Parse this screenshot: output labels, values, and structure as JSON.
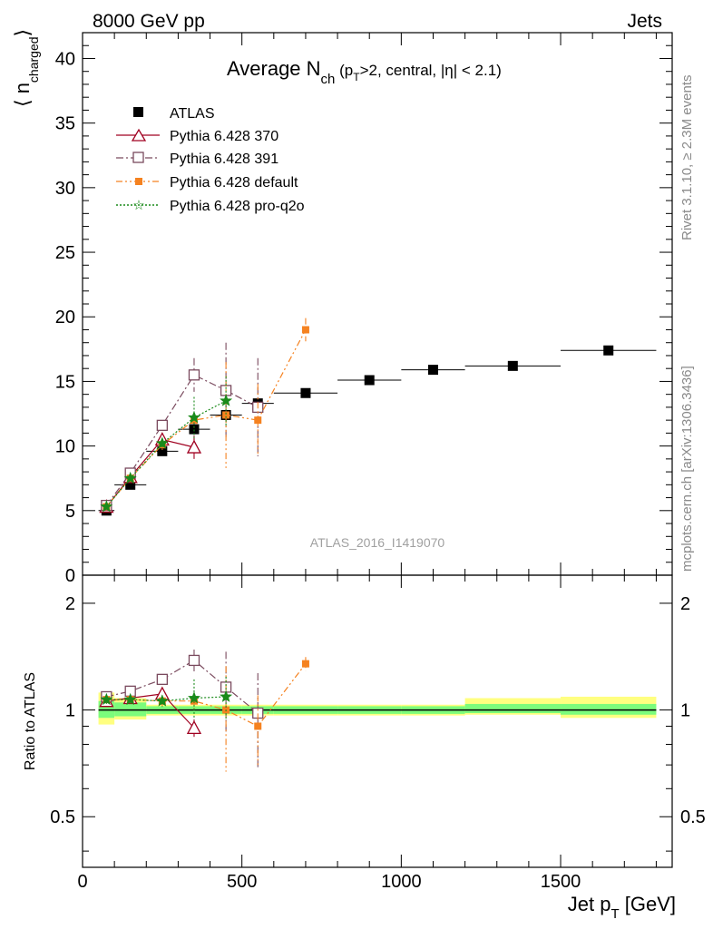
{
  "header": {
    "left": "8000 GeV pp",
    "right": "Jets"
  },
  "side_labels": {
    "rivet": "Rivet 3.1.10, ≥ 2.3M events",
    "mcplots": "mcplots.cern.ch [arXiv:1306.3436]"
  },
  "watermark": "ATLAS_2016_I1419070",
  "colors": {
    "atlas": "#000000",
    "py370": "#a00020",
    "py391": "#7a4a5e",
    "pydefault": "#f58220",
    "pyproq2o": "#1a8a1a",
    "band_inner": "#7cfc7c",
    "band_outer": "#ffff80"
  },
  "chart_data": [
    {
      "type": "scatter",
      "title": "Average N_ch (p_T>2, central, |η| < 2.1)",
      "title_parts": {
        "main": "Average N",
        "main_sub": "ch",
        "rest_a": " (p",
        "rest_sub": "T",
        "rest_b": ">2, central, |η| < 2.1)"
      },
      "ylabel": "⟨ n_charged ⟩",
      "ylabel_parts": {
        "open": "⟨ n",
        "sub": "charged",
        "close": "⟩"
      },
      "xlim": [
        0,
        1850
      ],
      "ylim": [
        0,
        42
      ],
      "y_ticks": [
        0,
        5,
        10,
        15,
        20,
        25,
        30,
        35,
        40
      ],
      "legend_position": "top-left",
      "series": [
        {
          "name": "ATLAS",
          "key": "atlas",
          "marker": "square-filled",
          "line": "none",
          "x": [
            75,
            150,
            250,
            350,
            450,
            550,
            700,
            900,
            1100,
            1350,
            1650
          ],
          "y": [
            5.0,
            7.0,
            9.6,
            11.3,
            12.4,
            13.3,
            14.1,
            15.1,
            15.9,
            16.2,
            17.4
          ],
          "xerr": [
            25,
            50,
            50,
            50,
            50,
            50,
            100,
            100,
            100,
            150,
            150
          ]
        },
        {
          "name": "Pythia 6.428 370",
          "key": "py370",
          "marker": "triangle-open",
          "line": "solid",
          "x": [
            75,
            150,
            250,
            350
          ],
          "y": [
            5.3,
            7.6,
            10.5,
            9.9
          ],
          "yerr": [
            0.2,
            0.3,
            0.5,
            0.9
          ]
        },
        {
          "name": "Pythia 6.428 391",
          "key": "py391",
          "marker": "square-open",
          "line": "dashdot",
          "x": [
            75,
            150,
            250,
            350,
            450,
            550
          ],
          "y": [
            5.4,
            7.9,
            11.6,
            15.5,
            14.3,
            13.0
          ],
          "yerr": [
            0.2,
            0.3,
            0.4,
            1.3,
            3.7,
            3.8
          ]
        },
        {
          "name": "Pythia 6.428 default",
          "key": "pydefault",
          "marker": "square-small",
          "line": "dashdotdot",
          "x": [
            75,
            150,
            250,
            350,
            450,
            550,
            700
          ],
          "y": [
            5.3,
            7.5,
            10.1,
            12.0,
            12.4,
            12.0,
            19.0
          ],
          "yerr": [
            0.2,
            0.3,
            0.4,
            0.6,
            4.1,
            2.8,
            0.9
          ]
        },
        {
          "name": "Pythia 6.428 pro-q2o",
          "key": "pyproq2o",
          "marker": "star",
          "line": "dotted",
          "x": [
            75,
            150,
            250,
            350,
            450
          ],
          "y": [
            5.3,
            7.5,
            10.2,
            12.2,
            13.5
          ],
          "yerr": [
            0.2,
            0.3,
            0.4,
            1.6,
            1.9
          ]
        }
      ]
    },
    {
      "type": "scatter",
      "ylabel": "Ratio to ATLAS",
      "xlabel": "Jet p_T [GeV]",
      "xlabel_parts": {
        "main": "Jet p",
        "sub": "T",
        "rest": " [GeV]"
      },
      "xlim": [
        0,
        1850
      ],
      "ylim": [
        0.36,
        2.4
      ],
      "y_scale": "log",
      "y_ticks": [
        0.5,
        1,
        2
      ],
      "y_tick_labels": [
        "0.5",
        "1",
        "2"
      ],
      "x_ticks": [
        0,
        500,
        1000,
        1500
      ],
      "x_tick_labels": [
        "0",
        "500",
        "1000",
        "1500"
      ],
      "bands": {
        "x_low": [
          50,
          100,
          200,
          300,
          400,
          500,
          600,
          800,
          1000,
          1200,
          1500
        ],
        "x_high": [
          100,
          200,
          300,
          400,
          500,
          600,
          800,
          1000,
          1200,
          1500,
          1800
        ],
        "inner_low": [
          0.95,
          0.96,
          0.975,
          0.975,
          0.975,
          0.975,
          0.975,
          0.975,
          0.975,
          0.98,
          0.97
        ],
        "inner_high": [
          1.06,
          1.05,
          1.025,
          1.025,
          1.025,
          1.025,
          1.025,
          1.025,
          1.025,
          1.04,
          1.04
        ],
        "outer_low": [
          0.91,
          0.94,
          0.965,
          0.965,
          0.965,
          0.965,
          0.965,
          0.965,
          0.965,
          0.97,
          0.95
        ],
        "outer_high": [
          1.12,
          1.08,
          1.035,
          1.035,
          1.035,
          1.035,
          1.035,
          1.035,
          1.035,
          1.08,
          1.09
        ]
      },
      "series": [
        {
          "name": "Pythia 6.428 370",
          "key": "py370",
          "x": [
            75,
            150,
            250,
            350
          ],
          "y": [
            1.06,
            1.08,
            1.11,
            0.89
          ],
          "yerr": [
            0.03,
            0.03,
            0.04,
            0.05
          ]
        },
        {
          "name": "Pythia 6.428 391",
          "key": "py391",
          "x": [
            75,
            150,
            250,
            350,
            450,
            550
          ],
          "y": [
            1.09,
            1.13,
            1.22,
            1.38,
            1.16,
            0.98
          ],
          "yerr": [
            0.03,
            0.03,
            0.04,
            0.1,
            0.3,
            0.29
          ]
        },
        {
          "name": "Pythia 6.428 default",
          "key": "pydefault",
          "x": [
            75,
            150,
            250,
            350,
            450,
            550,
            700
          ],
          "y": [
            1.07,
            1.07,
            1.06,
            1.06,
            1.0,
            0.9,
            1.35
          ],
          "yerr": [
            0.03,
            0.03,
            0.04,
            0.05,
            0.33,
            0.2,
            0.06
          ]
        },
        {
          "name": "Pythia 6.428 pro-q2o",
          "key": "pyproq2o",
          "x": [
            75,
            150,
            250,
            350,
            450
          ],
          "y": [
            1.07,
            1.07,
            1.06,
            1.08,
            1.09
          ],
          "yerr": [
            0.03,
            0.03,
            0.04,
            0.14,
            0.15
          ]
        }
      ]
    }
  ]
}
